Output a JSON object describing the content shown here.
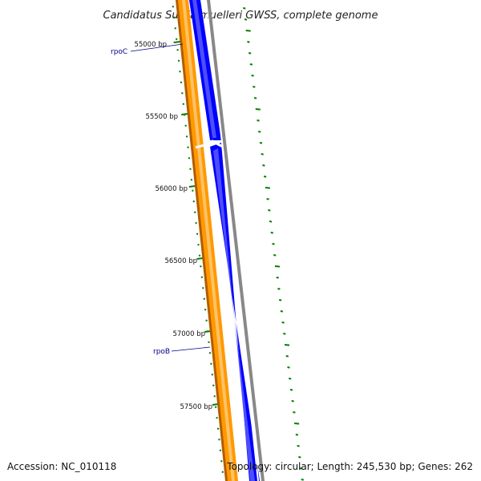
{
  "title": "Candidatus Sulcia muelleri GWSS, complete genome",
  "accession": "Accession: NC_010118",
  "summary": "Topology: circular; Length: 245,530 bp; Genes: 262",
  "ticks": [
    {
      "bp": 55000,
      "label": "55000 bp"
    },
    {
      "bp": 55500,
      "label": "55500 bp"
    },
    {
      "bp": 56000,
      "label": "56000 bp"
    },
    {
      "bp": 56500,
      "label": "56500 bp"
    },
    {
      "bp": 57000,
      "label": "57000 bp"
    },
    {
      "bp": 57500,
      "label": "57500 bp"
    }
  ],
  "genes": [
    {
      "name": "rpoC",
      "strand": "forward",
      "color": "#0000ff"
    },
    {
      "name": "rpoB",
      "strand": "forward",
      "color": "#0000ff"
    }
  ],
  "colors": {
    "forward_cds": "#0000ff",
    "reverse_cds": "#ff9900",
    "reverse_edge": "#b35c00",
    "backbone": "#888888",
    "gc_skew": "#008000",
    "gene_label": "#00008b"
  }
}
